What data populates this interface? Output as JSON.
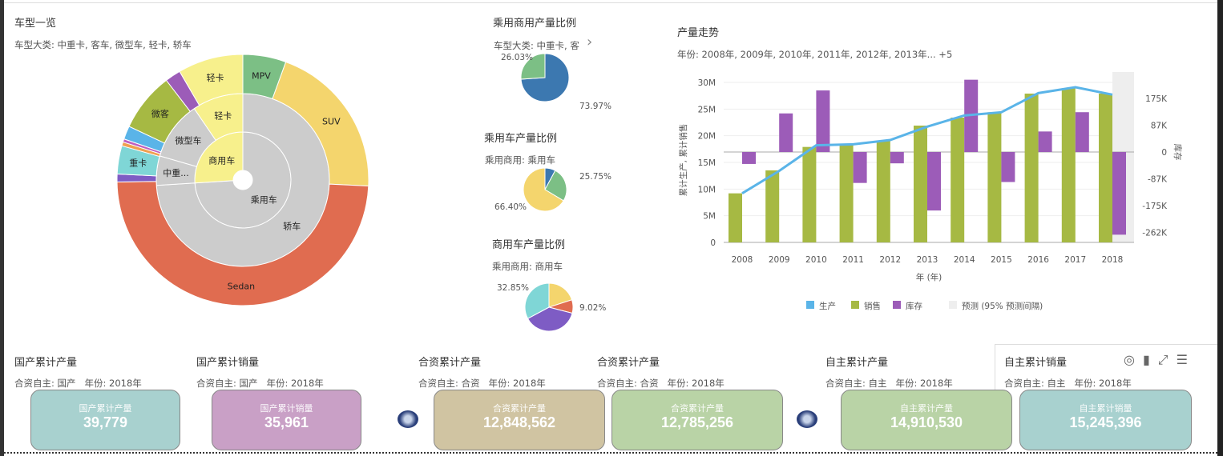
{
  "sunburst": {
    "title": "车型一览",
    "filter": "车型大类: 中重卡, 客车, 微型车, 轻卡, 轿车",
    "rings": [
      [
        {
          "label": "乘用车",
          "value": 74,
          "color": "#cccccc"
        },
        {
          "label": "商用车",
          "value": 26,
          "color": "#f7f08c"
        }
      ],
      [
        {
          "label": "轿车",
          "value": 74,
          "color": "#cccccc"
        },
        {
          "label": "中重...",
          "value": 5.5,
          "color": "#cccccc"
        },
        {
          "label": "微型车",
          "value": 11,
          "color": "#cccccc"
        },
        {
          "label": "轻卡",
          "value": 9.5,
          "color": "#f7f08c"
        }
      ],
      [
        {
          "label": "MPV",
          "value": 5.5,
          "color": "#7cbf85"
        },
        {
          "label": "SUV",
          "value": 20,
          "color": "#f4d56d"
        },
        {
          "label": "Sedan",
          "value": 48.5,
          "color": "#e06c50"
        },
        {
          "label": "",
          "value": 1,
          "color": "#7e5cc4"
        },
        {
          "label": "重卡",
          "value": 3.6,
          "color": "#7fd6d6"
        },
        {
          "label": "",
          "value": 0.5,
          "color": "#f0a050"
        },
        {
          "label": "",
          "value": 0.4,
          "color": "#c060c0"
        },
        {
          "label": "",
          "value": 1.7,
          "color": "#5ab4e8"
        },
        {
          "label": "微客",
          "value": 7.5,
          "color": "#a6b943"
        },
        {
          "label": "",
          "value": 2,
          "color": "#9c5cb8"
        },
        {
          "label": "轻卡",
          "value": 8.3,
          "color": "#f7f08c"
        }
      ]
    ]
  },
  "pies": [
    {
      "title": "乘用商用产量比例",
      "filter": "车型大类: 中重卡, 客",
      "slices": [
        {
          "value": 73.97,
          "label": "73.97%",
          "color": "#3c78b0"
        },
        {
          "value": 26.03,
          "label": "26.03%",
          "color": "#7cbf85"
        }
      ]
    },
    {
      "title": "乘用车产量比例",
      "filter": "乘用商用: 乘用车",
      "slices": [
        {
          "value": 7.85,
          "label": "",
          "color": "#3c78b0"
        },
        {
          "value": 25.75,
          "label": "25.75%",
          "color": "#7cbf85"
        },
        {
          "value": 66.4,
          "label": "66.40%",
          "color": "#f4d56d"
        }
      ]
    },
    {
      "title": "商用车产量比例",
      "filter": "乘用商用: 商用车",
      "slices": [
        {
          "value": 20,
          "label": "",
          "color": "#f4d56d"
        },
        {
          "value": 9.02,
          "label": "9.02%",
          "color": "#e06c50"
        },
        {
          "value": 38.13,
          "label": "",
          "color": "#7e5cc4"
        },
        {
          "value": 32.85,
          "label": "32.85%",
          "color": "#7fd6d6"
        }
      ]
    }
  ],
  "trend": {
    "title": "产量走势",
    "filter": "年份: 2008年, 2009年, 2010年, 2011年, 2012年, 2013年... +5",
    "chart_data": {
      "type": "bar",
      "categories": [
        "2008",
        "2009",
        "2010",
        "2011",
        "2012",
        "2013",
        "2014",
        "2015",
        "2016",
        "2017",
        "2018"
      ],
      "xlabel": "年 (年)",
      "ylabel": "累计生产, 累计销售",
      "y2label": "库存",
      "ylim": [
        0,
        30000000
      ],
      "yticks": [
        "0",
        "5M",
        "10M",
        "15M",
        "20M",
        "25M",
        "30M"
      ],
      "y2ticks": [
        "175K",
        "87K",
        "0",
        "-87K",
        "-175K",
        "-262K"
      ],
      "y2lim": [
        -300000,
        300000
      ],
      "series": [
        {
          "name": "生产",
          "type": "line",
          "color": "#5ab4e8",
          "values": [
            9200000,
            13400000,
            18200000,
            18400000,
            19200000,
            21700000,
            23800000,
            24400000,
            28000000,
            29100000,
            27700000
          ]
        },
        {
          "name": "销售",
          "type": "bar",
          "color": "#a6b943",
          "values": [
            9200000,
            13500000,
            17900000,
            18300000,
            19100000,
            21900000,
            23400000,
            24400000,
            27900000,
            28900000,
            27900000
          ]
        },
        {
          "name": "库存",
          "type": "bar",
          "axis": "right",
          "color": "#9c5cb8",
          "values": [
            -39000,
            126000,
            201000,
            -101000,
            -37000,
            -191000,
            236000,
            -98000,
            67000,
            130000,
            -270000
          ]
        }
      ],
      "forecast_label": "预测 (95% 预测间隔)",
      "forecast_categories": [
        "2018"
      ],
      "grid": true,
      "legend": "bottom"
    }
  },
  "kpis": [
    {
      "title": "国产累计产量",
      "filter": "合资自主: 国产   年份: 2018年",
      "name": "国产累计产量",
      "value": "39,779",
      "color": "#a8d1cf"
    },
    {
      "title": "国产累计销量",
      "filter": "合资自主: 国产   年份: 2018年",
      "name": "国产累计销量",
      "value": "35,961",
      "color": "#c9a0c6"
    },
    {
      "title": "合资累计产量",
      "filter": "合资自主: 合资   年份: 2018年",
      "name": "合资累计产量",
      "value": "12,848,562",
      "color": "#d0c4a2"
    },
    {
      "title": "合资累计产量",
      "filter": "合资自主: 合资   年份: 2018年",
      "name": "合资累计产量",
      "value": "12,785,256",
      "color": "#b9d3a6"
    },
    {
      "title": "自主累计产量",
      "filter": "合资自主: 自主   年份: 2018年",
      "name": "自主累计产量",
      "value": "14,910,530",
      "color": "#b9d3a6"
    },
    {
      "title": "自主累计销量",
      "filter": "合资自主: 自主   年份: 2018年",
      "name": "自主累计销量",
      "value": "15,245,396",
      "color": "#a8d1cf"
    }
  ],
  "icons": [
    "target-icon",
    "bar-chart-icon",
    "expand-icon",
    "menu-icon"
  ]
}
